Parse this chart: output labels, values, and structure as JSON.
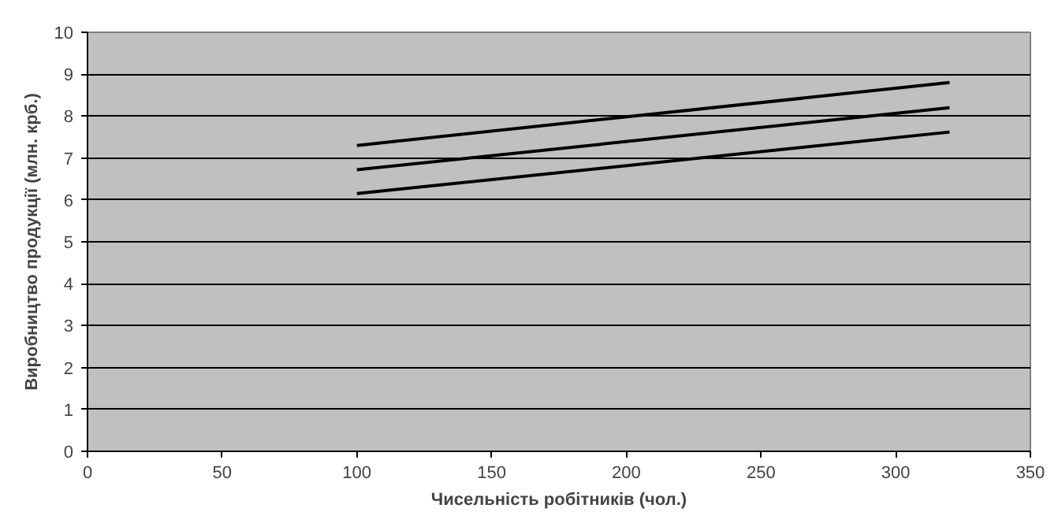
{
  "chart_data": {
    "type": "line",
    "xlabel": "Чисельність робітників (чол.)",
    "ylabel": "Виробництво продукції (млн. крб.)",
    "xlim": [
      0,
      350
    ],
    "xticks": [
      0,
      50,
      100,
      150,
      200,
      250,
      300,
      350
    ],
    "ylim": [
      0,
      10
    ],
    "yticks": [
      0,
      1,
      2,
      3,
      4,
      5,
      6,
      7,
      8,
      9,
      10
    ],
    "x": [
      100,
      320
    ],
    "grid": "y",
    "marker": "none",
    "line_style": "solid",
    "series": [
      {
        "color": "#000000",
        "values": [
          7.3,
          8.8
        ]
      },
      {
        "color": "#000000",
        "values": [
          6.72,
          8.2
        ]
      },
      {
        "color": "#000000",
        "values": [
          6.15,
          7.62
        ]
      }
    ]
  }
}
